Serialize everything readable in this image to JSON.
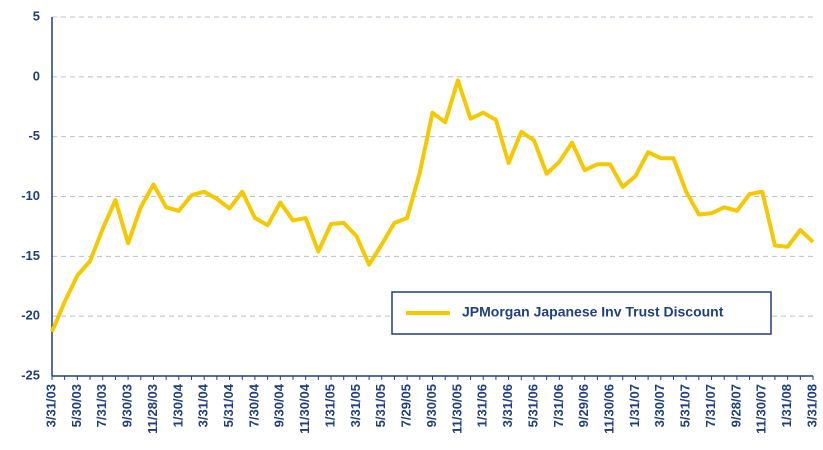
{
  "chart_data": {
    "type": "line",
    "categories": [
      "3/31/03",
      null,
      "5/30/03",
      null,
      "7/31/03",
      null,
      "9/30/03",
      null,
      "11/28/03",
      null,
      "1/30/04",
      null,
      "3/31/04",
      null,
      "5/31/04",
      null,
      "7/30/04",
      null,
      "9/30/04",
      null,
      "11/30/04",
      null,
      "1/31/05",
      null,
      "3/31/05",
      null,
      "5/31/05",
      null,
      "7/29/05",
      null,
      "9/30/05",
      null,
      "11/30/05",
      null,
      "1/31/06",
      null,
      "3/31/06",
      null,
      "5/31/06",
      null,
      "7/31/06",
      null,
      "9/29/06",
      null,
      "11/30/06",
      null,
      "1/31/07",
      null,
      "3/30/07",
      null,
      "5/31/07",
      null,
      "7/31/07",
      null,
      "9/28/07",
      null,
      "11/30/07",
      null,
      "1/31/08",
      null,
      "3/31/08"
    ],
    "series": [
      {
        "name": "JPMorgan Japanese Inv Trust Discount",
        "color": "#f5c800",
        "values": [
          -21.3,
          -18.8,
          -16.6,
          -15.4,
          -12.7,
          -10.3,
          -13.9,
          -10.9,
          -9.0,
          -10.9,
          -11.2,
          -9.9,
          -9.6,
          -10.2,
          -11.0,
          -9.6,
          -11.8,
          -12.4,
          -10.5,
          -12.0,
          -11.8,
          -14.6,
          -12.3,
          -12.2,
          -13.3,
          -15.7,
          -14.0,
          -12.2,
          -11.8,
          -8.0,
          -3.0,
          -3.8,
          -0.3,
          -3.5,
          -3.0,
          -3.6,
          -7.2,
          -4.6,
          -5.3,
          -8.1,
          -7.1,
          -5.5,
          -7.8,
          -7.3,
          -7.3,
          -9.2,
          -8.3,
          -6.3,
          -6.8,
          -6.8,
          -9.6,
          -11.5,
          -11.4,
          -10.9,
          -11.2,
          -9.8,
          -9.6,
          -14.1,
          -14.2,
          -12.8,
          -13.8
        ]
      }
    ],
    "ylim": [
      -25,
      5
    ],
    "yticks": [
      5,
      0,
      -5,
      -10,
      -15,
      -20,
      -25
    ],
    "grid": true,
    "legend_position": "lower right"
  }
}
